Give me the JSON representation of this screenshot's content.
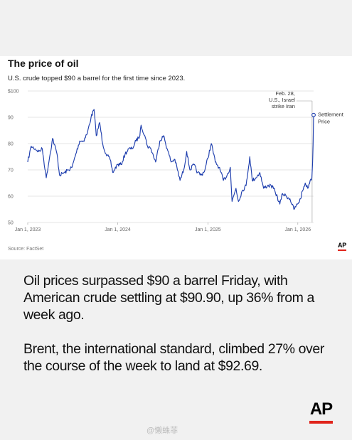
{
  "chart_data": {
    "type": "line",
    "title": "The price of oil",
    "subtitle": "U.S. crude topped $90 a barrel for the first time since 2023.",
    "source": "Source: FactSet",
    "ylim": [
      50,
      100
    ],
    "yticks": [
      {
        "value": 100,
        "label": "$100"
      },
      {
        "value": 90,
        "label": "90"
      },
      {
        "value": 80,
        "label": "80"
      },
      {
        "value": 70,
        "label": "70"
      },
      {
        "value": 60,
        "label": "60"
      },
      {
        "value": 50,
        "label": "50"
      }
    ],
    "xlim": [
      "2023-01-01",
      "2026-03-06"
    ],
    "xticks": [
      {
        "date": "2023-01-01",
        "label": "Jan 1, 2023"
      },
      {
        "date": "2024-01-01",
        "label": "Jan 1, 2024"
      },
      {
        "date": "2025-01-01",
        "label": "Jan 1, 2025"
      },
      {
        "date": "2026-01-01",
        "label": "Jan 1, 2026"
      }
    ],
    "grid": true,
    "line_color": "#1f3fae",
    "series": [
      {
        "points": [
          [
            "2023-01-01",
            73
          ],
          [
            "2023-01-15",
            79
          ],
          [
            "2023-01-31",
            78
          ],
          [
            "2023-02-15",
            77
          ],
          [
            "2023-03-01",
            78
          ],
          [
            "2023-03-17",
            67
          ],
          [
            "2023-03-31",
            75
          ],
          [
            "2023-04-12",
            82
          ],
          [
            "2023-04-30",
            76
          ],
          [
            "2023-05-10",
            68
          ],
          [
            "2023-05-31",
            69
          ],
          [
            "2023-06-15",
            70
          ],
          [
            "2023-06-30",
            71
          ],
          [
            "2023-07-15",
            76
          ],
          [
            "2023-07-31",
            81
          ],
          [
            "2023-08-15",
            81
          ],
          [
            "2023-08-31",
            84
          ],
          [
            "2023-09-15",
            90
          ],
          [
            "2023-09-27",
            93
          ],
          [
            "2023-10-06",
            83
          ],
          [
            "2023-10-20",
            88
          ],
          [
            "2023-11-01",
            80
          ],
          [
            "2023-11-15",
            76
          ],
          [
            "2023-12-01",
            74
          ],
          [
            "2023-12-12",
            69
          ],
          [
            "2023-12-31",
            72
          ],
          [
            "2024-01-15",
            72
          ],
          [
            "2024-01-31",
            76
          ],
          [
            "2024-02-15",
            78
          ],
          [
            "2024-02-29",
            78
          ],
          [
            "2024-03-15",
            81
          ],
          [
            "2024-03-31",
            83
          ],
          [
            "2024-04-05",
            87
          ],
          [
            "2024-04-20",
            83
          ],
          [
            "2024-05-01",
            79
          ],
          [
            "2024-05-15",
            78
          ],
          [
            "2024-06-03",
            73
          ],
          [
            "2024-06-20",
            81
          ],
          [
            "2024-07-05",
            83
          ],
          [
            "2024-07-20",
            78
          ],
          [
            "2024-08-05",
            73
          ],
          [
            "2024-08-20",
            74
          ],
          [
            "2024-09-10",
            66
          ],
          [
            "2024-09-25",
            70
          ],
          [
            "2024-10-07",
            77
          ],
          [
            "2024-10-20",
            70
          ],
          [
            "2024-11-05",
            72
          ],
          [
            "2024-11-20",
            69
          ],
          [
            "2024-12-05",
            68
          ],
          [
            "2024-12-20",
            70
          ],
          [
            "2025-01-15",
            80
          ],
          [
            "2025-01-31",
            73
          ],
          [
            "2025-02-15",
            71
          ],
          [
            "2025-03-05",
            66
          ],
          [
            "2025-03-20",
            68
          ],
          [
            "2025-04-02",
            71
          ],
          [
            "2025-04-09",
            58
          ],
          [
            "2025-04-25",
            63
          ],
          [
            "2025-05-05",
            58
          ],
          [
            "2025-05-20",
            62
          ],
          [
            "2025-06-05",
            64
          ],
          [
            "2025-06-20",
            75
          ],
          [
            "2025-06-30",
            66
          ],
          [
            "2025-07-15",
            67
          ],
          [
            "2025-07-31",
            69
          ],
          [
            "2025-08-15",
            63
          ],
          [
            "2025-08-31",
            64
          ],
          [
            "2025-09-15",
            64
          ],
          [
            "2025-09-30",
            62
          ],
          [
            "2025-10-20",
            57
          ],
          [
            "2025-10-31",
            61
          ],
          [
            "2025-11-15",
            60
          ],
          [
            "2025-11-30",
            59
          ],
          [
            "2025-12-16",
            55
          ],
          [
            "2025-12-31",
            57
          ],
          [
            "2026-01-12",
            59
          ],
          [
            "2026-01-20",
            62
          ],
          [
            "2026-01-31",
            65
          ],
          [
            "2026-02-10",
            63
          ],
          [
            "2026-02-20",
            66
          ],
          [
            "2026-02-27",
            67
          ],
          [
            "2026-03-02",
            73
          ],
          [
            "2026-03-04",
            80
          ],
          [
            "2026-03-06",
            90.9
          ]
        ]
      }
    ],
    "annotations": {
      "event": {
        "date": "2026-02-28",
        "lines": [
          "Feb. 28,",
          "U.S., Israel",
          "strike Iran"
        ]
      },
      "endpoint": {
        "date": "2026-03-06",
        "value": 90.9,
        "lines": [
          "Settlement",
          "Price"
        ]
      }
    }
  },
  "article": {
    "paragraph_1": "Oil prices surpassed $90 a barrel Friday, with American crude settling at $90.90, up 36% from a week ago.",
    "paragraph_2": "Brent, the international standard, climbed 27% over the course of the week to land at $92.69."
  },
  "branding": {
    "ap_small": "AP",
    "ap_logo": "AP",
    "accent_color": "#e0241b",
    "watermark": "@懒蛛菲"
  }
}
